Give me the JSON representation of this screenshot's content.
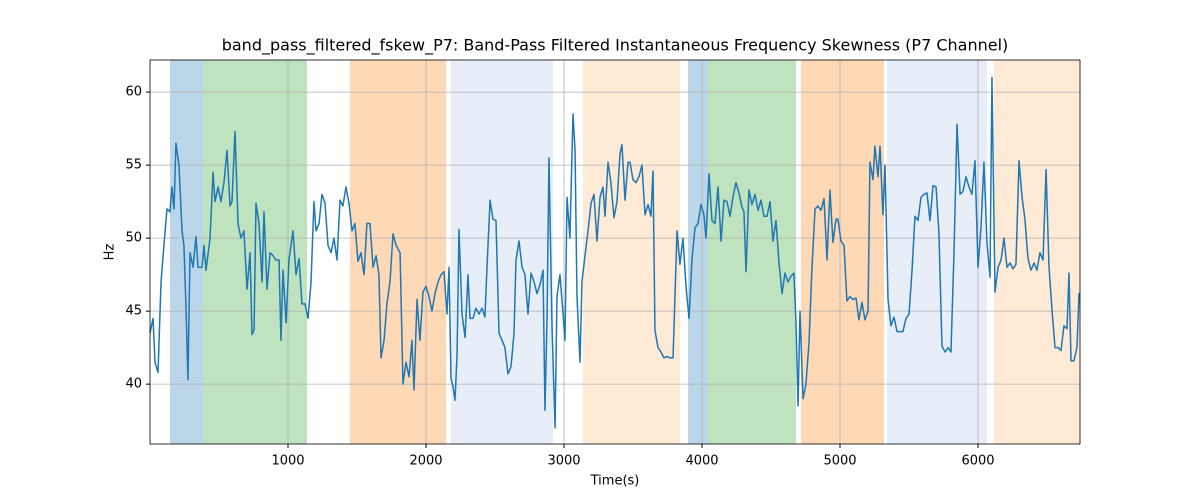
{
  "chart_data": {
    "type": "line",
    "title": "band_pass_filtered_fskew_P7: Band-Pass Filtered Instantaneous Frequency Skewness (P7 Channel)",
    "xlabel": "Time(s)",
    "ylabel": "Hz",
    "xlim": [
      0,
      6739
    ],
    "ylim": [
      35.9,
      62.2
    ],
    "xticks": [
      1000,
      2000,
      3000,
      4000,
      5000,
      6000
    ],
    "yticks": [
      40,
      45,
      50,
      55,
      60
    ],
    "grid": true,
    "spans": [
      {
        "start": 145,
        "end": 384,
        "color": "#1f77b4",
        "opacity": 0.3
      },
      {
        "start": 384,
        "end": 1138,
        "color": "#2ca02c",
        "opacity": 0.3
      },
      {
        "start": 1449,
        "end": 2145,
        "color": "#ff7f0e",
        "opacity": 0.3
      },
      {
        "start": 2181,
        "end": 2920,
        "color": "#aec7e8",
        "opacity": 0.3
      },
      {
        "start": 3138,
        "end": 3841,
        "color": "#ffbb78",
        "opacity": 0.3
      },
      {
        "start": 3899,
        "end": 4043,
        "color": "#1f77b4",
        "opacity": 0.3
      },
      {
        "start": 4043,
        "end": 4681,
        "color": "#2ca02c",
        "opacity": 0.3
      },
      {
        "start": 4717,
        "end": 5319,
        "color": "#ff7f0e",
        "opacity": 0.3
      },
      {
        "start": 5341,
        "end": 6065,
        "color": "#aec7e8",
        "opacity": 0.3
      },
      {
        "start": 6116,
        "end": 6739,
        "color": "#ffbb78",
        "opacity": 0.3
      }
    ],
    "x": [
      0,
      22,
      36,
      58,
      80,
      101,
      123,
      145,
      159,
      174,
      188,
      210,
      232,
      246,
      261,
      275,
      290,
      312,
      333,
      348,
      377,
      391,
      406,
      435,
      457,
      471,
      493,
      514,
      536,
      558,
      580,
      594,
      616,
      638,
      659,
      681,
      703,
      725,
      739,
      754,
      768,
      790,
      812,
      826,
      848,
      870,
      891,
      913,
      935,
      949,
      964,
      986,
      1007,
      1036,
      1058,
      1080,
      1101,
      1123,
      1145,
      1167,
      1188,
      1203,
      1225,
      1246,
      1268,
      1290,
      1312,
      1333,
      1355,
      1377,
      1398,
      1420,
      1442,
      1464,
      1485,
      1507,
      1529,
      1551,
      1572,
      1594,
      1616,
      1638,
      1659,
      1674,
      1696,
      1717,
      1739,
      1761,
      1783,
      1812,
      1833,
      1855,
      1877,
      1898,
      1913,
      1935,
      1956,
      1978,
      2000,
      2022,
      2043,
      2065,
      2087,
      2109,
      2130,
      2152,
      2167,
      2181,
      2196,
      2210,
      2225,
      2239,
      2261,
      2283,
      2304,
      2319,
      2340,
      2362,
      2384,
      2406,
      2427,
      2442,
      2464,
      2485,
      2507,
      2529,
      2551,
      2572,
      2594,
      2616,
      2638,
      2652,
      2674,
      2696,
      2717,
      2739,
      2761,
      2783,
      2804,
      2826,
      2848,
      2862,
      2877,
      2891,
      2913,
      2935,
      2949,
      2971,
      2993,
      3007,
      3022,
      3043,
      3065,
      3080,
      3094,
      3116,
      3130,
      3152,
      3174,
      3196,
      3217,
      3239,
      3261,
      3282,
      3297,
      3319,
      3340,
      3362,
      3384,
      3406,
      3420,
      3442,
      3464,
      3478,
      3500,
      3522,
      3543,
      3565,
      3587,
      3609,
      3630,
      3645,
      3659,
      3681,
      3703,
      3724,
      3746,
      3768,
      3790,
      3819,
      3840,
      3862,
      3884,
      3906,
      3927,
      3949,
      3971,
      3993,
      4014,
      4029,
      4051,
      4072,
      4094,
      4116,
      4138,
      4159,
      4181,
      4203,
      4224,
      4246,
      4268,
      4290,
      4304,
      4319,
      4340,
      4362,
      4384,
      4406,
      4427,
      4449,
      4471,
      4493,
      4514,
      4536,
      4558,
      4580,
      4601,
      4623,
      4645,
      4666,
      4681,
      4696,
      4710,
      4732,
      4753,
      4775,
      4797,
      4819,
      4840,
      4862,
      4884,
      4906,
      4927,
      4949,
      4971,
      4985,
      5007,
      5029,
      5050,
      5072,
      5094,
      5116,
      5137,
      5159,
      5181,
      5203,
      5217,
      5239,
      5253,
      5275,
      5290,
      5311,
      5326,
      5348,
      5369,
      5391,
      5413,
      5435,
      5456,
      5478,
      5500,
      5522,
      5543,
      5565,
      5587,
      5609,
      5630,
      5652,
      5674,
      5696,
      5717,
      5739,
      5761,
      5783,
      5804,
      5826,
      5848,
      5870,
      5891,
      5913,
      5935,
      5956,
      5978,
      6000,
      6022,
      6043,
      6065,
      6087,
      6101,
      6123,
      6145,
      6167,
      6188,
      6210,
      6232,
      6253,
      6275,
      6297,
      6319,
      6340,
      6362,
      6384,
      6406,
      6427,
      6449,
      6471,
      6493,
      6514,
      6536,
      6558,
      6580,
      6601,
      6623,
      6645,
      6659,
      6674,
      6695,
      6717,
      6732,
      6739
    ],
    "series": [
      {
        "color": "#1f77b4",
        "values": [
          43.5,
          44.5,
          41.5,
          40.8,
          47,
          49.5,
          52,
          51.8,
          53.5,
          52,
          56.5,
          55,
          50.5,
          49.5,
          45.2,
          40.3,
          49,
          48,
          50.1,
          48,
          48,
          49.5,
          47.8,
          50,
          54.5,
          52.5,
          53.5,
          52.5,
          53.8,
          56,
          52.2,
          52.5,
          57.3,
          51,
          50,
          50.5,
          46.5,
          49,
          43.4,
          43.7,
          52.4,
          51,
          47,
          51.8,
          46.5,
          49,
          48.8,
          48.5,
          48.5,
          43,
          47.8,
          44.2,
          48.5,
          50.5,
          47.5,
          48.6,
          45.5,
          45.5,
          44.5,
          47,
          52.5,
          50.5,
          51,
          53,
          52.4,
          49.5,
          49,
          50,
          48.5,
          52.6,
          52.2,
          53.5,
          52.4,
          50.5,
          51,
          48.4,
          49,
          47.5,
          51,
          51,
          48,
          48.8,
          47.5,
          41.8,
          43,
          45.5,
          47,
          50.3,
          49.5,
          49,
          40,
          41.5,
          40.5,
          43,
          39.6,
          45.8,
          43,
          46.3,
          46.7,
          46,
          45,
          46.2,
          47,
          47.5,
          47.7,
          44.8,
          48,
          40.4,
          39.8,
          38.9,
          42,
          50.6,
          44.8,
          43.2,
          47.5,
          44.5,
          44.5,
          45.2,
          44.8,
          45.2,
          44.6,
          48,
          52.6,
          51.3,
          51.2,
          43.5,
          43,
          42.5,
          40.7,
          41.2,
          43.5,
          48.5,
          49.8,
          48,
          47.5,
          44.8,
          47.6,
          47,
          46.2,
          46.8,
          47.8,
          38.2,
          44.5,
          55.5,
          44,
          37,
          46,
          47.5,
          44.8,
          43,
          52.8,
          50,
          58.5,
          56,
          46,
          41.5,
          47,
          48.8,
          50.5,
          52.4,
          53,
          49.8,
          52.8,
          53.5,
          51.5,
          55.2,
          53.8,
          51.4,
          52.5,
          55.8,
          56.4,
          52.6,
          55.2,
          55.2,
          54,
          53.8,
          54.2,
          55,
          51.6,
          52.3,
          51.5,
          54.6,
          43.7,
          42.5,
          42.2,
          41.8,
          41.9,
          41.8,
          41.8,
          50.5,
          48.2,
          50,
          46.7,
          44.5,
          48.5,
          50.7,
          51,
          52.3,
          51.6,
          50,
          54.4,
          51.2,
          51,
          53.5,
          49.8,
          52.6,
          52.5,
          51.5,
          52.8,
          53.8,
          53.1,
          52.1,
          51.8,
          47.7,
          53.3,
          52.3,
          53,
          51.9,
          52.6,
          51.5,
          51.5,
          52.5,
          49.8,
          51.2,
          48.3,
          46.2,
          47.6,
          47,
          47.4,
          47.6,
          44.2,
          38.5,
          45,
          39,
          40,
          42.8,
          48,
          52,
          52.2,
          51.9,
          52.7,
          48.5,
          53.3,
          49.7,
          51.3,
          51.3,
          49.8,
          49.5,
          45.7,
          46,
          45.8,
          45.9,
          44.4,
          45.6,
          44.4,
          45,
          55.2,
          54,
          56.3,
          54.2,
          56.3,
          51.6,
          55,
          45.8,
          44,
          44.6,
          43.6,
          43.6,
          43.6,
          44.5,
          44.8,
          47.8,
          51.5,
          51.2,
          52.8,
          53,
          53.1,
          51.2,
          53.6,
          53.5,
          50.3,
          42.6,
          42.2,
          42.5,
          42.2,
          49,
          57.8,
          53,
          53.2,
          54.2,
          53.5,
          53,
          55.3,
          48,
          50.8,
          55.2,
          49.7,
          47.3,
          61,
          46.3,
          48,
          48.5,
          50,
          48,
          48.3,
          47.9,
          48.2,
          55.3,
          52.8,
          51.3,
          48.6,
          47.8,
          48.3,
          47.8,
          49,
          48.5,
          54.7,
          48.1,
          45.1,
          42.5,
          42.5,
          42.3,
          44,
          43.8,
          47.6,
          41.6,
          41.6,
          42.5,
          46.2,
          46.2
        ]
      }
    ]
  }
}
